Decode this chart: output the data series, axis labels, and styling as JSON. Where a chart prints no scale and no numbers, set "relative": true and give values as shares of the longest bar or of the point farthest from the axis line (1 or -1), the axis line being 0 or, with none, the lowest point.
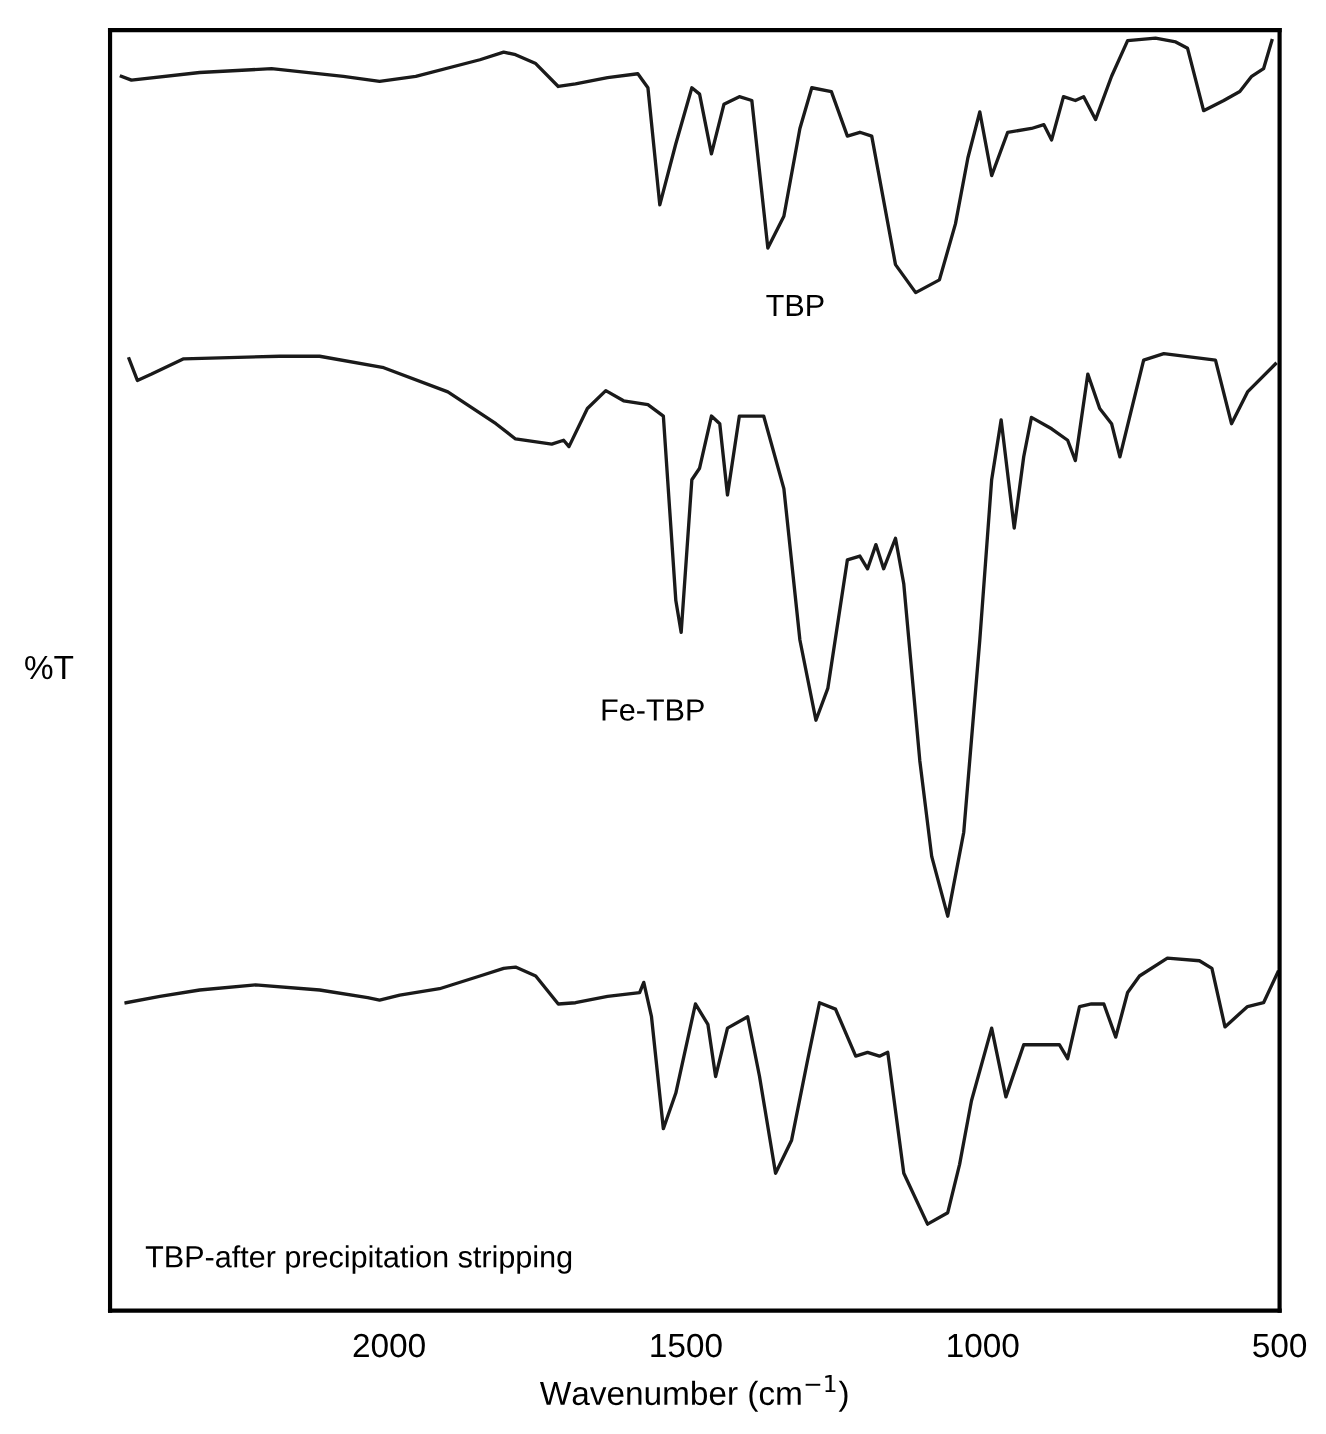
{
  "chart_data": {
    "type": "line",
    "relative": true,
    "xlabel": "Wavenumber (cm$^{−1}$)",
    "ylabel": "%T",
    "annotations": [
      "TBP-after precipitation stripping"
    ],
    "xlim": [
      2470,
      500
    ],
    "xticks": [
      2000,
      1500,
      1000,
      500
    ],
    "grid": false,
    "legend": false,
    "marker": "none",
    "line_style": "solid",
    "series": [
      {
        "name": "TBP",
        "color": "#1a1a1a",
        "x": [
          2451,
          2434,
          2319,
          2198,
          2077,
          2016,
          1955,
          1847,
          1807,
          1787,
          1753,
          1715,
          1686,
          1632,
          1581,
          1564,
          1544,
          1517,
          1490,
          1477,
          1457,
          1436,
          1410,
          1389,
          1362,
          1335,
          1308,
          1288,
          1255,
          1228,
          1207,
          1187,
          1147,
          1113,
          1073,
          1046,
          1025,
          1005,
          985,
          958,
          918,
          897,
          884,
          864,
          844,
          830,
          810,
          783,
          756,
          709,
          675,
          655,
          628,
          594,
          567,
          547,
          527,
          513
        ],
        "values": [
          0.97,
          0.967,
          0.973,
          0.976,
          0.97,
          0.966,
          0.97,
          0.983,
          0.989,
          0.987,
          0.98,
          0.962,
          0.964,
          0.969,
          0.972,
          0.961,
          0.869,
          0.917,
          0.961,
          0.956,
          0.909,
          0.948,
          0.954,
          0.951,
          0.835,
          0.86,
          0.929,
          0.961,
          0.958,
          0.923,
          0.926,
          0.923,
          0.822,
          0.8,
          0.81,
          0.854,
          0.906,
          0.942,
          0.892,
          0.926,
          0.929,
          0.932,
          0.92,
          0.954,
          0.951,
          0.954,
          0.936,
          0.97,
          0.998,
          1.0,
          0.997,
          0.992,
          0.943,
          0.951,
          0.958,
          0.97,
          0.976,
          0.998
        ]
      },
      {
        "name": "Fe-TBP",
        "color": "#1a1a1a",
        "x": [
          2438,
          2424,
          2400,
          2346,
          2184,
          2117,
          2009,
          1901,
          1820,
          1787,
          1726,
          1706,
          1697,
          1666,
          1635,
          1605,
          1564,
          1538,
          1517,
          1508,
          1490,
          1477,
          1457,
          1443,
          1430,
          1410,
          1369,
          1335,
          1308,
          1281,
          1261,
          1228,
          1207,
          1194,
          1180,
          1167,
          1147,
          1133,
          1106,
          1086,
          1059,
          1032,
          1005,
          985,
          969,
          947,
          931,
          918,
          884,
          857,
          844,
          823,
          803,
          783,
          769,
          749,
          729,
          695,
          608,
          581,
          554,
          507
        ],
        "values": [
          0.748,
          0.731,
          0.736,
          0.748,
          0.75,
          0.75,
          0.741,
          0.722,
          0.697,
          0.685,
          0.681,
          0.684,
          0.679,
          0.709,
          0.723,
          0.715,
          0.712,
          0.703,
          0.558,
          0.533,
          0.653,
          0.662,
          0.703,
          0.697,
          0.641,
          0.703,
          0.703,
          0.646,
          0.527,
          0.464,
          0.489,
          0.59,
          0.593,
          0.583,
          0.602,
          0.583,
          0.607,
          0.571,
          0.432,
          0.357,
          0.31,
          0.376,
          0.527,
          0.653,
          0.7,
          0.615,
          0.671,
          0.702,
          0.693,
          0.684,
          0.668,
          0.736,
          0.709,
          0.697,
          0.671,
          0.709,
          0.747,
          0.752,
          0.747,
          0.697,
          0.722,
          0.744
        ]
      },
      {
        "color": "#1a1a1a",
        "x": [
          2443,
          2386,
          2319,
          2225,
          2117,
          2036,
          2016,
          1982,
          1915,
          1847,
          1807,
          1787,
          1753,
          1715,
          1686,
          1632,
          1578,
          1571,
          1558,
          1538,
          1517,
          1484,
          1463,
          1450,
          1430,
          1396,
          1376,
          1349,
          1322,
          1295,
          1275,
          1248,
          1214,
          1194,
          1174,
          1160,
          1133,
          1093,
          1059,
          1039,
          1019,
          985,
          961,
          931,
          871,
          857,
          837,
          817,
          796,
          776,
          756,
          736,
          689,
          635,
          614,
          592,
          554,
          527,
          503
        ],
        "values": [
          0.242,
          0.247,
          0.252,
          0.256,
          0.252,
          0.246,
          0.244,
          0.248,
          0.253,
          0.263,
          0.269,
          0.27,
          0.263,
          0.241,
          0.242,
          0.247,
          0.25,
          0.258,
          0.231,
          0.143,
          0.171,
          0.241,
          0.225,
          0.184,
          0.222,
          0.231,
          0.184,
          0.108,
          0.134,
          0.197,
          0.242,
          0.237,
          0.2,
          0.203,
          0.2,
          0.203,
          0.108,
          0.068,
          0.077,
          0.115,
          0.165,
          0.222,
          0.168,
          0.209,
          0.209,
          0.198,
          0.239,
          0.241,
          0.241,
          0.215,
          0.25,
          0.263,
          0.277,
          0.275,
          0.269,
          0.223,
          0.239,
          0.242,
          0.266
        ]
      }
    ]
  }
}
